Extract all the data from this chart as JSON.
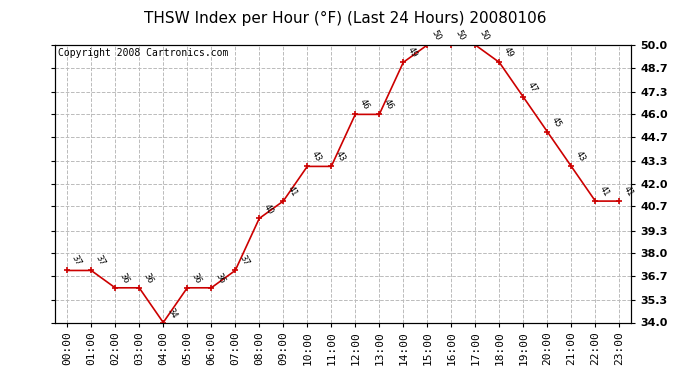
{
  "title": "THSW Index per Hour (°F) (Last 24 Hours) 20080106",
  "copyright": "Copyright 2008 Cartronics.com",
  "hours": [
    "00:00",
    "01:00",
    "02:00",
    "03:00",
    "04:00",
    "05:00",
    "06:00",
    "07:00",
    "08:00",
    "09:00",
    "10:00",
    "11:00",
    "12:00",
    "13:00",
    "14:00",
    "15:00",
    "16:00",
    "17:00",
    "18:00",
    "19:00",
    "20:00",
    "21:00",
    "22:00",
    "23:00"
  ],
  "values": [
    37,
    37,
    36,
    36,
    34,
    36,
    36,
    37,
    40,
    41,
    43,
    43,
    46,
    46,
    49,
    50,
    50,
    50,
    49,
    47,
    45,
    43,
    41,
    41
  ],
  "line_color": "#cc0000",
  "marker_color": "#cc0000",
  "bg_color": "#ffffff",
  "plot_bg_color": "#ffffff",
  "grid_color": "#bbbbbb",
  "ylim": [
    34.0,
    50.0
  ],
  "yticks": [
    34.0,
    35.3,
    36.7,
    38.0,
    39.3,
    40.7,
    42.0,
    43.3,
    44.7,
    46.0,
    47.3,
    48.7,
    50.0
  ],
  "title_fontsize": 11,
  "label_fontsize": 8,
  "copyright_fontsize": 7
}
